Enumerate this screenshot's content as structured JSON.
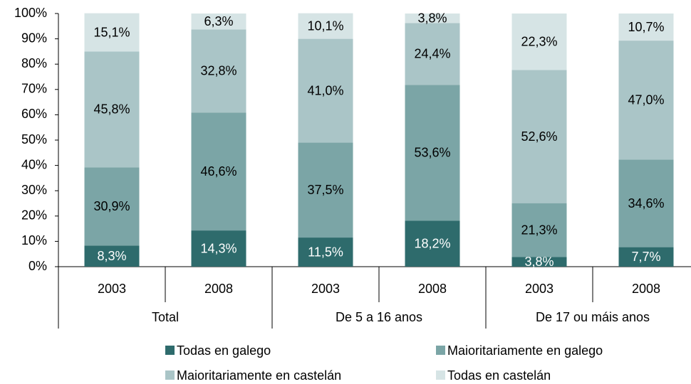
{
  "chart_data": {
    "type": "stacked_bar",
    "categories": [
      "2003",
      "2008",
      "2003",
      "2008",
      "2003",
      "2008"
    ],
    "groups": [
      "Total",
      "De 5 a 16 anos",
      "De 17 ou máis anos"
    ],
    "series": [
      {
        "name": "Todas en galego",
        "color": "#2e6b6c",
        "values": [
          8.3,
          14.3,
          11.5,
          18.2,
          3.8,
          7.7
        ],
        "value_labels": [
          "8,3%",
          "14,3%",
          "11,5%",
          "18,2%",
          "3,8%",
          "7,7%"
        ]
      },
      {
        "name": "Maioritariamente en galego",
        "color": "#7ba5a6",
        "values": [
          30.9,
          46.6,
          37.5,
          53.6,
          21.3,
          34.6
        ],
        "value_labels": [
          "30,9%",
          "46,6%",
          "37,5%",
          "53,6%",
          "21,3%",
          "34,6%"
        ]
      },
      {
        "name": "Maioritariamente en castelán",
        "color": "#aac5c7",
        "values": [
          45.8,
          32.8,
          41.0,
          24.4,
          52.6,
          47.0
        ],
        "value_labels": [
          "45,8%",
          "32,8%",
          "41,0%",
          "24,4%",
          "52,6%",
          "47,0%"
        ]
      },
      {
        "name": "Todas en castelán",
        "color": "#d6e4e5",
        "values": [
          15.1,
          6.3,
          10.1,
          3.8,
          22.3,
          10.7
        ],
        "value_labels": [
          "15,1%",
          "6,3%",
          "10,1%",
          "3,8%",
          "22,3%",
          "10,7%"
        ]
      }
    ],
    "ylim": [
      0,
      100
    ],
    "yticks": [
      {
        "value": 0,
        "label": "0%"
      },
      {
        "value": 10,
        "label": "10%"
      },
      {
        "value": 20,
        "label": "20%"
      },
      {
        "value": 30,
        "label": "30%"
      },
      {
        "value": 40,
        "label": "40%"
      },
      {
        "value": 50,
        "label": "50%"
      },
      {
        "value": 60,
        "label": "60%"
      },
      {
        "value": 70,
        "label": "70%"
      },
      {
        "value": 80,
        "label": "80%"
      },
      {
        "value": 90,
        "label": "90%"
      },
      {
        "value": 100,
        "label": "100%"
      }
    ],
    "legend": "bottom"
  }
}
